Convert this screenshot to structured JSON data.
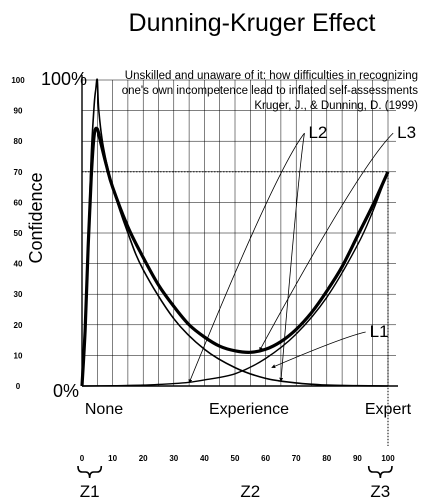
{
  "chart_data": {
    "type": "line",
    "title": "Dunning-Kruger Effect",
    "subtitle_lines": [
      "Unskilled and unaware of it: how difficulties in recognizing",
      "one's own incompetence lead to inflated self-assessments",
      "Kruger, J., & Dunning, D. (1999)"
    ],
    "ylabel": "Confidence",
    "xlim": [
      0,
      100
    ],
    "ylim": [
      0,
      100
    ],
    "y_ticks": [
      "0",
      "10",
      "20",
      "30",
      "40",
      "50",
      "60",
      "70",
      "80",
      "90",
      "100"
    ],
    "x_ticks": [
      "0",
      "10",
      "20",
      "30",
      "40",
      "50",
      "60",
      "70",
      "80",
      "90",
      "100"
    ],
    "y_marks": {
      "top": "100%",
      "bottom": "0%"
    },
    "x_category_labels": {
      "left": "None",
      "middle": "Experience",
      "right": "Expert"
    },
    "zones": [
      "Z1",
      "Z2",
      "Z3"
    ],
    "reference_level": 70,
    "reference_x": 100,
    "curves": [
      {
        "label": "L1",
        "points": [
          [
            0,
            0
          ],
          [
            10,
            0.1
          ],
          [
            20,
            0.3
          ],
          [
            30,
            0.8
          ],
          [
            35,
            1.2
          ],
          [
            40,
            2
          ],
          [
            50,
            4
          ],
          [
            60,
            9
          ],
          [
            70,
            17
          ],
          [
            80,
            29
          ],
          [
            90,
            46
          ],
          [
            95,
            57
          ],
          [
            100,
            70
          ]
        ]
      },
      {
        "label": "L2",
        "points": [
          [
            0,
            0
          ],
          [
            1,
            18
          ],
          [
            2,
            45
          ],
          [
            3,
            75
          ],
          [
            4,
            92
          ],
          [
            4.5,
            97
          ],
          [
            5,
            100
          ],
          [
            5.5,
            90
          ],
          [
            7,
            78
          ],
          [
            10,
            65
          ],
          [
            15,
            50
          ],
          [
            20,
            38
          ],
          [
            30,
            22
          ],
          [
            40,
            12
          ],
          [
            50,
            6
          ],
          [
            60,
            2.5
          ],
          [
            70,
            1
          ],
          [
            80,
            0.3
          ],
          [
            90,
            0.1
          ],
          [
            100,
            0
          ]
        ]
      },
      {
        "label": "L3",
        "points": [
          [
            0,
            0
          ],
          [
            1,
            18
          ],
          [
            2,
            45
          ],
          [
            3,
            68
          ],
          [
            4,
            82
          ],
          [
            5,
            84
          ],
          [
            6,
            80
          ],
          [
            8,
            72
          ],
          [
            10,
            65
          ],
          [
            15,
            52
          ],
          [
            20,
            42
          ],
          [
            25,
            33
          ],
          [
            30,
            26
          ],
          [
            35,
            20
          ],
          [
            40,
            16
          ],
          [
            45,
            13
          ],
          [
            50,
            11.5
          ],
          [
            55,
            11
          ],
          [
            60,
            12
          ],
          [
            65,
            14.5
          ],
          [
            70,
            18.5
          ],
          [
            75,
            24
          ],
          [
            80,
            31
          ],
          [
            85,
            39
          ],
          [
            90,
            49
          ],
          [
            95,
            59
          ],
          [
            100,
            70
          ]
        ]
      }
    ],
    "curve_label_positions": [
      {
        "label": "L2",
        "x": 74,
        "y": 81
      },
      {
        "label": "L3",
        "x": 103,
        "y": 81
      },
      {
        "label": "L1",
        "x": 94,
        "y": 16
      }
    ],
    "arrows": [
      {
        "from_label": "L2",
        "to": [
          35,
          1
        ]
      },
      {
        "from_label": "L2",
        "to": [
          65,
          1.5
        ]
      },
      {
        "from_label": "L3",
        "to": [
          58,
          11.5
        ]
      },
      {
        "from_label": "L1",
        "to": [
          62,
          6
        ]
      }
    ]
  }
}
